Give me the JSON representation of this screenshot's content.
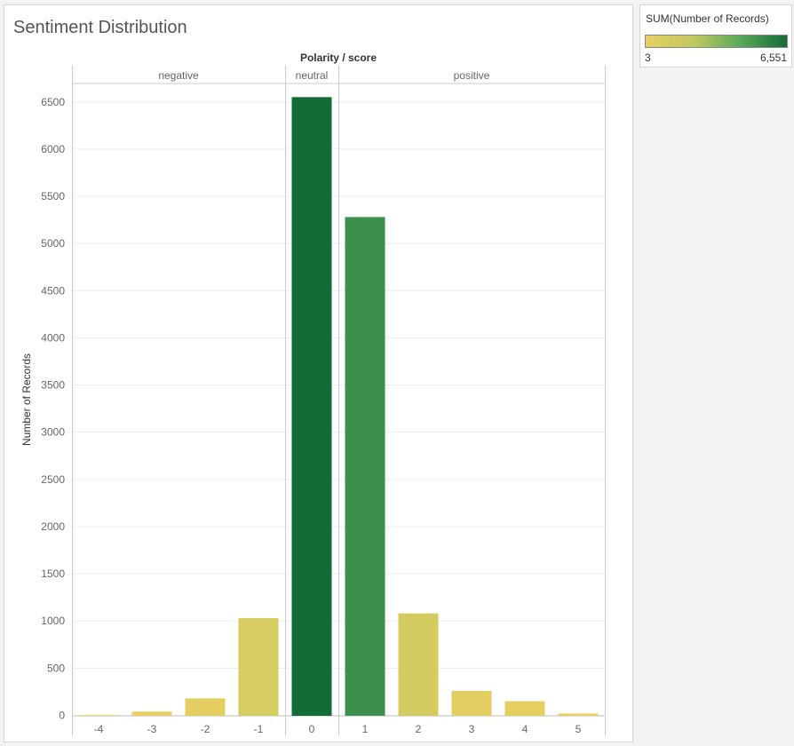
{
  "title": "Sentiment Distribution",
  "legend": {
    "title": "SUM(Number of Records)",
    "min_label": "3",
    "max_label": "6,551",
    "min_value": 3,
    "max_value": 6551,
    "colors": [
      "#e8cf61",
      "#c2c860",
      "#5aaa5a",
      "#136b37"
    ]
  },
  "chart_data": {
    "type": "bar",
    "title": "Sentiment Distribution",
    "column_header": "Polarity / score",
    "ylabel": "Number of Records",
    "ylim": [
      0,
      6700
    ],
    "yticks": [
      0,
      500,
      1000,
      1500,
      2000,
      2500,
      3000,
      3500,
      4000,
      4500,
      5000,
      5500,
      6000,
      6500
    ],
    "ytick_labels": [
      "0",
      "500",
      "1000",
      "1500",
      "2000",
      "2500",
      "3000",
      "3500",
      "4000",
      "4500",
      "5000",
      "5500",
      "6000",
      "6500"
    ],
    "grid": true,
    "legend_placement": "top-right",
    "panels": [
      {
        "name": "negative",
        "categories": [
          "-4",
          "-3",
          "-2",
          "-1"
        ],
        "values": [
          3,
          40,
          180,
          1030
        ]
      },
      {
        "name": "neutral",
        "categories": [
          "0"
        ],
        "values": [
          6551
        ]
      },
      {
        "name": "positive",
        "categories": [
          "1",
          "2",
          "3",
          "4",
          "5"
        ],
        "values": [
          5280,
          1080,
          260,
          150,
          20
        ]
      }
    ]
  }
}
